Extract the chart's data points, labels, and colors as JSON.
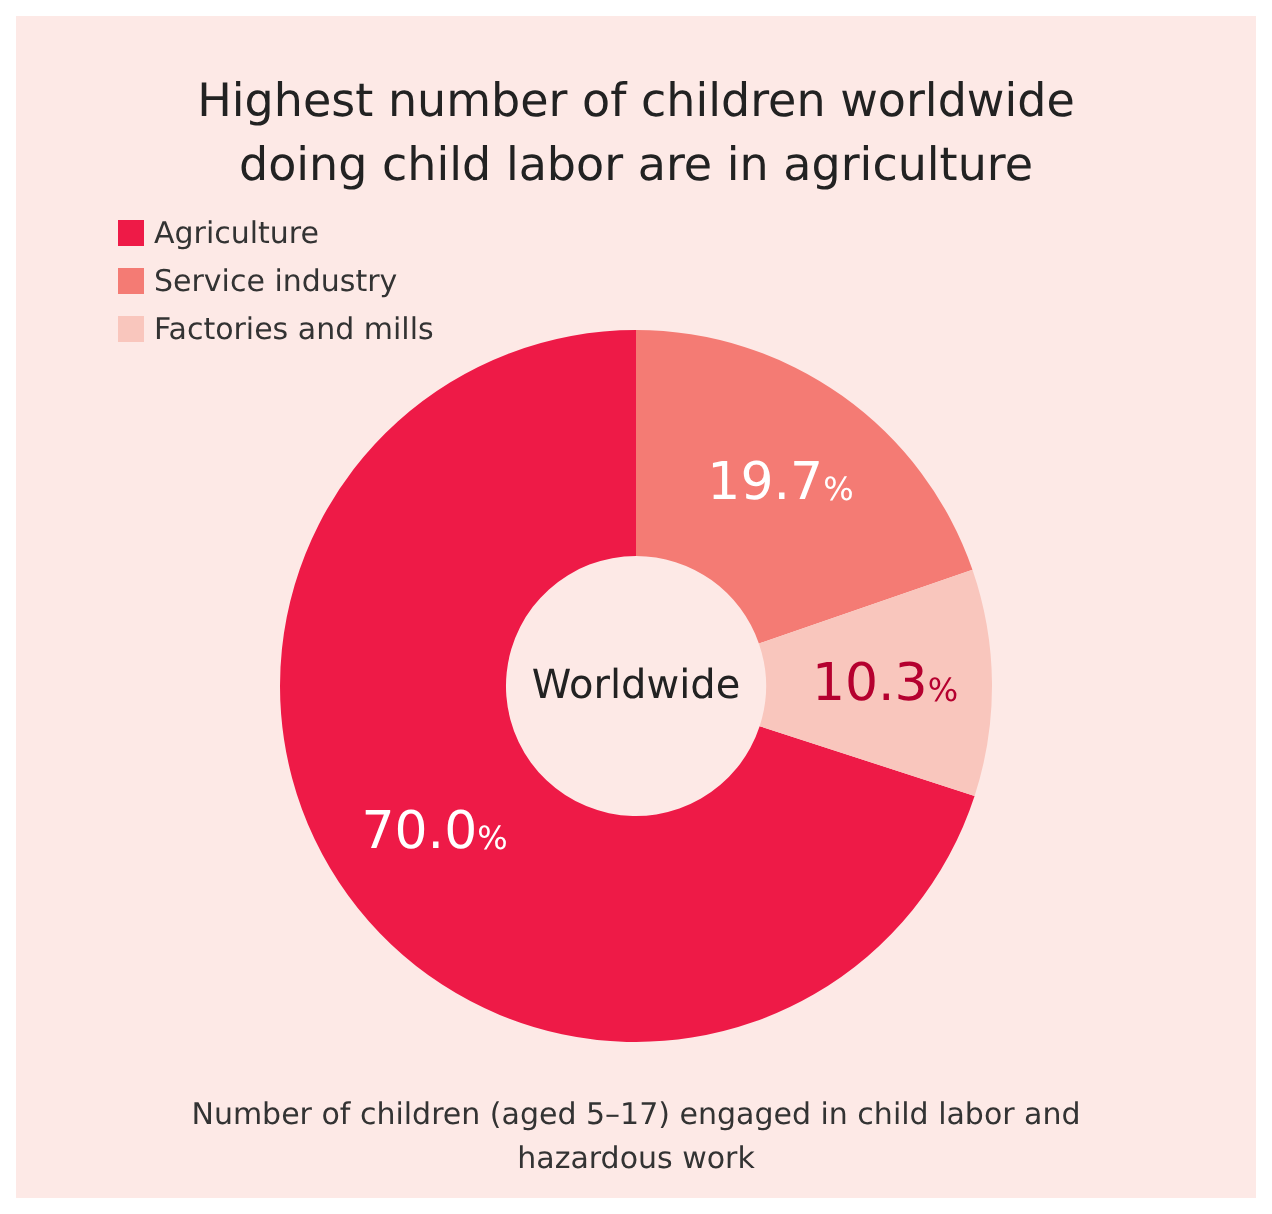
{
  "chart_data": {
    "type": "donut",
    "title": "Highest number of children worldwide\ndoing child labor are in agriculture",
    "categories": [
      "Agriculture",
      "Service industry",
      "Factories and mills"
    ],
    "values": [
      70.0,
      19.7,
      10.3
    ],
    "colors": [
      "#ee1a47",
      "#f47b74",
      "#f9c6bd"
    ],
    "value_labels": [
      "70.0%",
      "19.7%",
      "10.3%"
    ],
    "annotations": [
      "Worldwide",
      "Number of children (aged 5–17) engaged in child labor and\nhazardous work"
    ],
    "legend": "top left"
  }
}
